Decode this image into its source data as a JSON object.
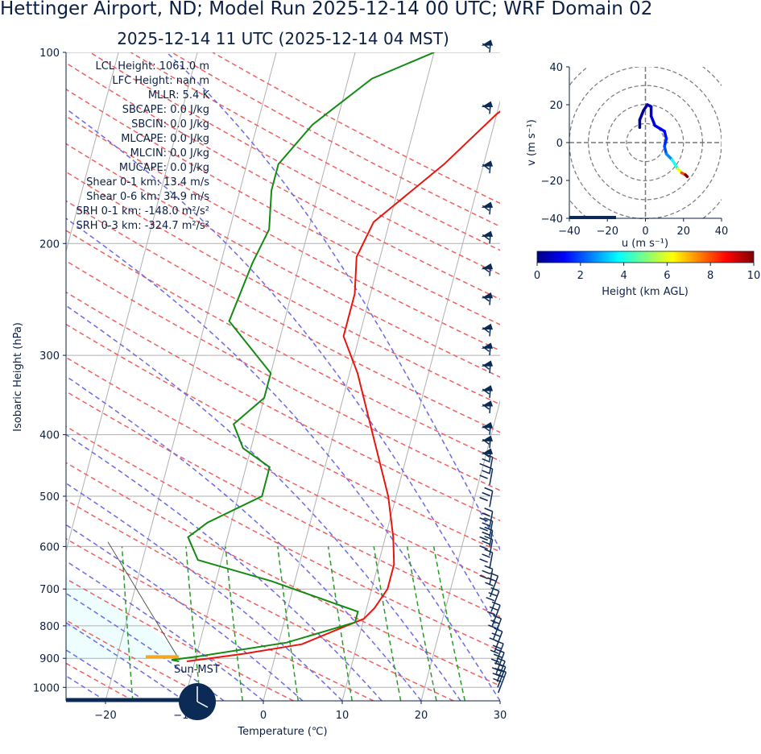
{
  "title": "Hettinger Airport, ND; Model Run 2025-12-14 00 UTC; WRF Domain 02",
  "subtitle": "2025-12-14 11 UTC  (2025-12-14 04 MST)",
  "colors": {
    "temperature": "#e8150f",
    "dewpoint": "#138a13",
    "dry_adiabat": "#f06060",
    "moist_adiabat": "#6a6ae8",
    "mixing_ratio": "#2a9a2a",
    "cape_fill": "#eefefe",
    "barbs": "#0b2a55",
    "text": "#0b1f44",
    "lcl_marker": "#f5a623"
  },
  "stats": [
    "LCL Height: 1061.0 m",
    "LFC Height: nan m",
    "MLLR: 5.4 K",
    "SBCAPE: 0.0 J/kg",
    "SBCIN: 0.0 J/kg",
    "MLCAPE: 0.0 J/kg",
    "MLCIN: 0.0 J/kg",
    "MUCAPE: 0.0 J/kg",
    "Shear 0-1 km: 13.4 m/s",
    "Shear 0-6 km: 34.9 m/s",
    "SRH 0-1 km: -148.0 m²/s²",
    "SRH 0-3 km: -324.7 m²/s²"
  ],
  "sun_label": "Sun-MST",
  "chart_data": [
    {
      "type": "line",
      "chart": "skew-T log-p",
      "xlabel": "Temperature (℃)",
      "ylabel": "Isobaric Height (hPa)",
      "xlim": [
        -25,
        30
      ],
      "ylim": [
        1050,
        100
      ],
      "y_scale": "log",
      "x_ticks": [
        -20,
        -10,
        0,
        10,
        20,
        30
      ],
      "x_tick_labels": [
        "−20",
        "−10",
        "0",
        "10",
        "20",
        "30"
      ],
      "y_ticks": [
        100,
        200,
        300,
        400,
        500,
        600,
        700,
        800,
        900,
        1000
      ],
      "grid": true,
      "series": [
        {
          "key": "temperature",
          "x": [
            -11,
            -4,
            3,
            8,
            10,
            11,
            12,
            12,
            11,
            9,
            5,
            1,
            -2,
            -2,
            -3,
            -2,
            5,
            10,
            19
          ],
          "y": [
            910,
            885,
            855,
            800,
            780,
            750,
            700,
            640,
            580,
            500,
            400,
            320,
            280,
            240,
            210,
            185,
            150,
            125,
            100
          ]
        },
        {
          "key": "dewpoint",
          "x": [
            -12,
            -13,
            -10,
            1,
            9,
            9,
            -3,
            -13,
            -15,
            -13,
            -7,
            -7,
            -11,
            -13,
            -10,
            -10,
            -17,
            -16,
            -15,
            -16,
            -16,
            -13,
            -7,
            0
          ],
          "y": [
            910,
            905,
            895,
            850,
            790,
            760,
            680,
            630,
            580,
            550,
            500,
            450,
            420,
            385,
            350,
            320,
            265,
            215,
            190,
            165,
            150,
            130,
            110,
            100
          ]
        }
      ]
    },
    {
      "type": "line",
      "chart": "hodograph",
      "xlabel": "u (m s⁻¹)",
      "ylabel": "v (m s⁻¹)",
      "xlim": [
        -40,
        40
      ],
      "ylim": [
        -40,
        40
      ],
      "ticks": [
        -40,
        -20,
        0,
        20,
        40
      ],
      "points": [
        {
          "u": -3,
          "v": 8,
          "h": 0
        },
        {
          "u": -3,
          "v": 12,
          "h": 0.1
        },
        {
          "u": -1,
          "v": 17,
          "h": 0.2
        },
        {
          "u": 1,
          "v": 20,
          "h": 0.3
        },
        {
          "u": 3,
          "v": 19,
          "h": 0.5
        },
        {
          "u": 3,
          "v": 14,
          "h": 0.7
        },
        {
          "u": 5,
          "v": 9,
          "h": 0.9
        },
        {
          "u": 10,
          "v": 6,
          "h": 1.1
        },
        {
          "u": 11,
          "v": 2,
          "h": 1.3
        },
        {
          "u": 10,
          "v": -2,
          "h": 1.6
        },
        {
          "u": 11,
          "v": -6,
          "h": 2
        },
        {
          "u": 14,
          "v": -9,
          "h": 2.6
        },
        {
          "u": 17,
          "v": -14,
          "h": 4
        },
        {
          "u": 19,
          "v": -16,
          "h": 6
        },
        {
          "u": 21,
          "v": -17,
          "h": 8
        },
        {
          "u": 22,
          "v": -18,
          "h": 10
        }
      ]
    }
  ],
  "colorbar": {
    "label": "Height (km AGL)",
    "ticks": [
      "0",
      "2",
      "4",
      "6",
      "8",
      "10"
    ],
    "colormap": "jet"
  }
}
